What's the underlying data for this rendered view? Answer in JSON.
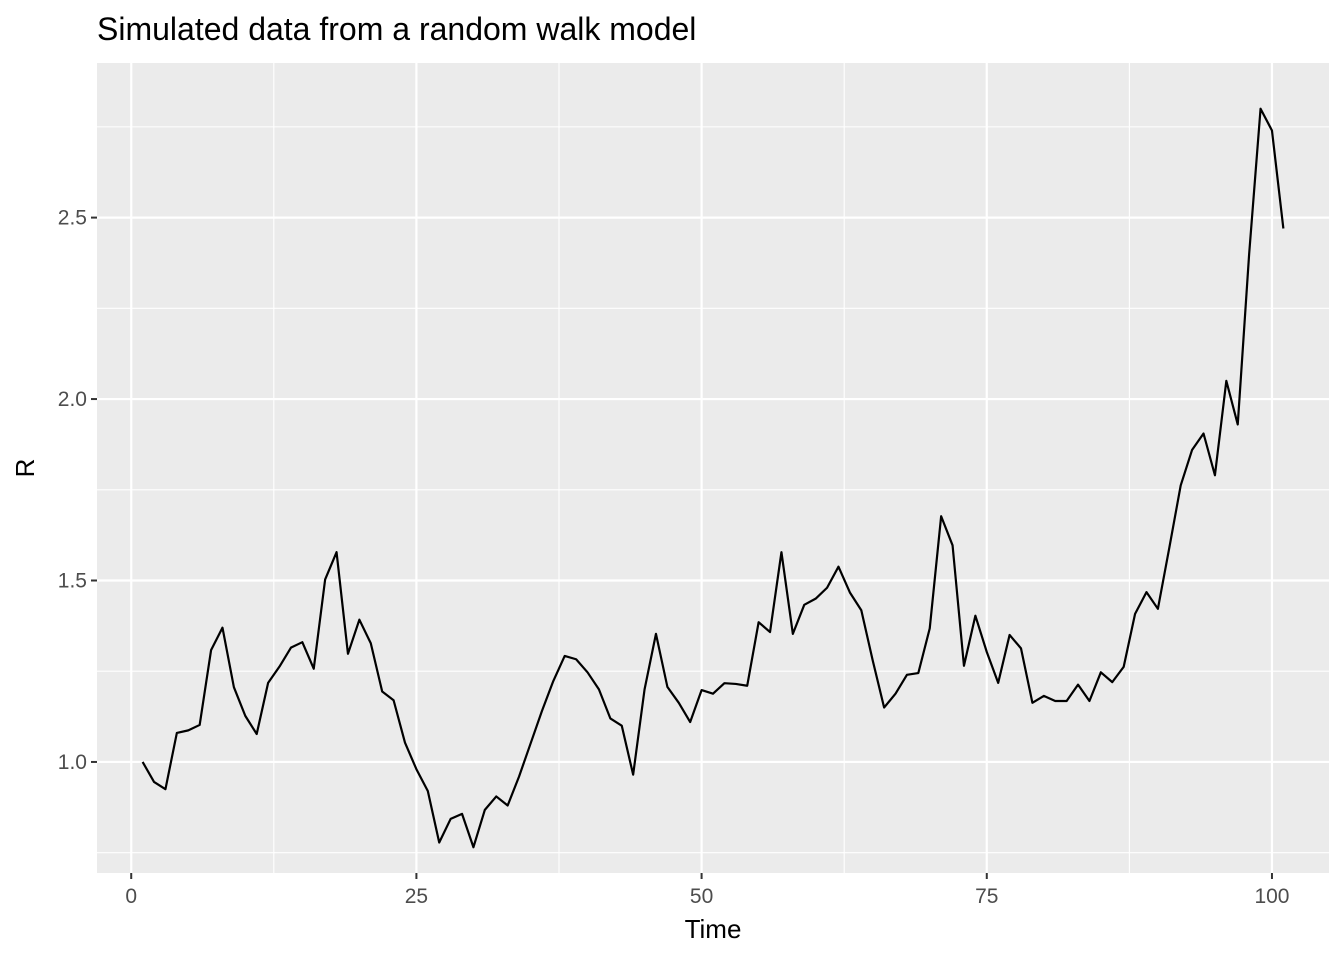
{
  "chart_data": {
    "type": "line",
    "title": "Simulated data from a random walk model",
    "xlabel": "Time",
    "ylabel": "R",
    "xlim": [
      -3.0,
      105.0
    ],
    "ylim": [
      0.694,
      2.926
    ],
    "x_ticks": [
      0,
      25,
      50,
      75,
      100
    ],
    "x_tick_labels": [
      "0",
      "25",
      "50",
      "75",
      "100"
    ],
    "y_ticks": [
      1.0,
      1.5,
      2.0,
      2.5
    ],
    "y_tick_labels": [
      "1.0",
      "1.5",
      "2.0",
      "2.5"
    ],
    "x_minor_ticks": [
      12.5,
      37.5,
      62.5,
      87.5
    ],
    "y_minor_ticks": [
      0.75,
      1.25,
      1.75,
      2.25,
      2.75
    ],
    "grid": true,
    "legend": "none",
    "colors": {
      "panel": "#ebebeb",
      "grid": "#ffffff",
      "line": "#000000"
    },
    "series": [
      {
        "x": [
          1,
          2,
          3,
          4,
          5,
          6,
          7,
          8,
          9,
          10,
          11,
          12,
          13,
          14,
          15,
          16,
          17,
          18,
          19,
          20,
          21,
          22,
          23,
          24,
          25,
          26,
          27,
          28,
          29,
          30,
          31,
          32,
          33,
          34,
          35,
          36,
          37,
          38,
          39,
          40,
          41,
          42,
          43,
          44,
          45,
          46,
          47,
          48,
          49,
          50,
          51,
          52,
          53,
          54,
          55,
          56,
          57,
          58,
          59,
          60,
          61,
          62,
          63,
          64,
          65,
          66,
          67,
          68,
          69,
          70,
          71,
          72,
          73,
          74,
          75,
          76,
          77,
          78,
          79,
          80,
          81,
          82,
          83,
          84,
          85,
          86,
          87,
          88,
          89,
          90,
          91,
          92,
          93,
          94,
          95,
          96,
          97,
          98,
          99,
          100,
          101
        ],
        "values": [
          1.0,
          0.945,
          0.925,
          1.08,
          1.087,
          1.102,
          1.308,
          1.37,
          1.206,
          1.127,
          1.077,
          1.218,
          1.263,
          1.315,
          1.33,
          1.257,
          1.503,
          1.578,
          1.298,
          1.392,
          1.327,
          1.194,
          1.17,
          1.053,
          0.98,
          0.92,
          0.778,
          0.843,
          0.857,
          0.765,
          0.868,
          0.905,
          0.88,
          0.96,
          1.05,
          1.14,
          1.223,
          1.292,
          1.283,
          1.247,
          1.2,
          1.12,
          1.1,
          0.965,
          1.2,
          1.353,
          1.207,
          1.163,
          1.11,
          1.198,
          1.188,
          1.217,
          1.215,
          1.21,
          1.385,
          1.358,
          1.578,
          1.353,
          1.433,
          1.45,
          1.48,
          1.538,
          1.467,
          1.418,
          1.28,
          1.15,
          1.188,
          1.24,
          1.245,
          1.368,
          1.677,
          1.597,
          1.265,
          1.403,
          1.303,
          1.218,
          1.35,
          1.313,
          1.163,
          1.182,
          1.168,
          1.168,
          1.213,
          1.168,
          1.247,
          1.22,
          1.262,
          1.408,
          1.468,
          1.422,
          1.59,
          1.762,
          1.86,
          1.905,
          1.79,
          2.05,
          1.93,
          2.4,
          2.8,
          2.74,
          2.47
        ]
      }
    ]
  }
}
